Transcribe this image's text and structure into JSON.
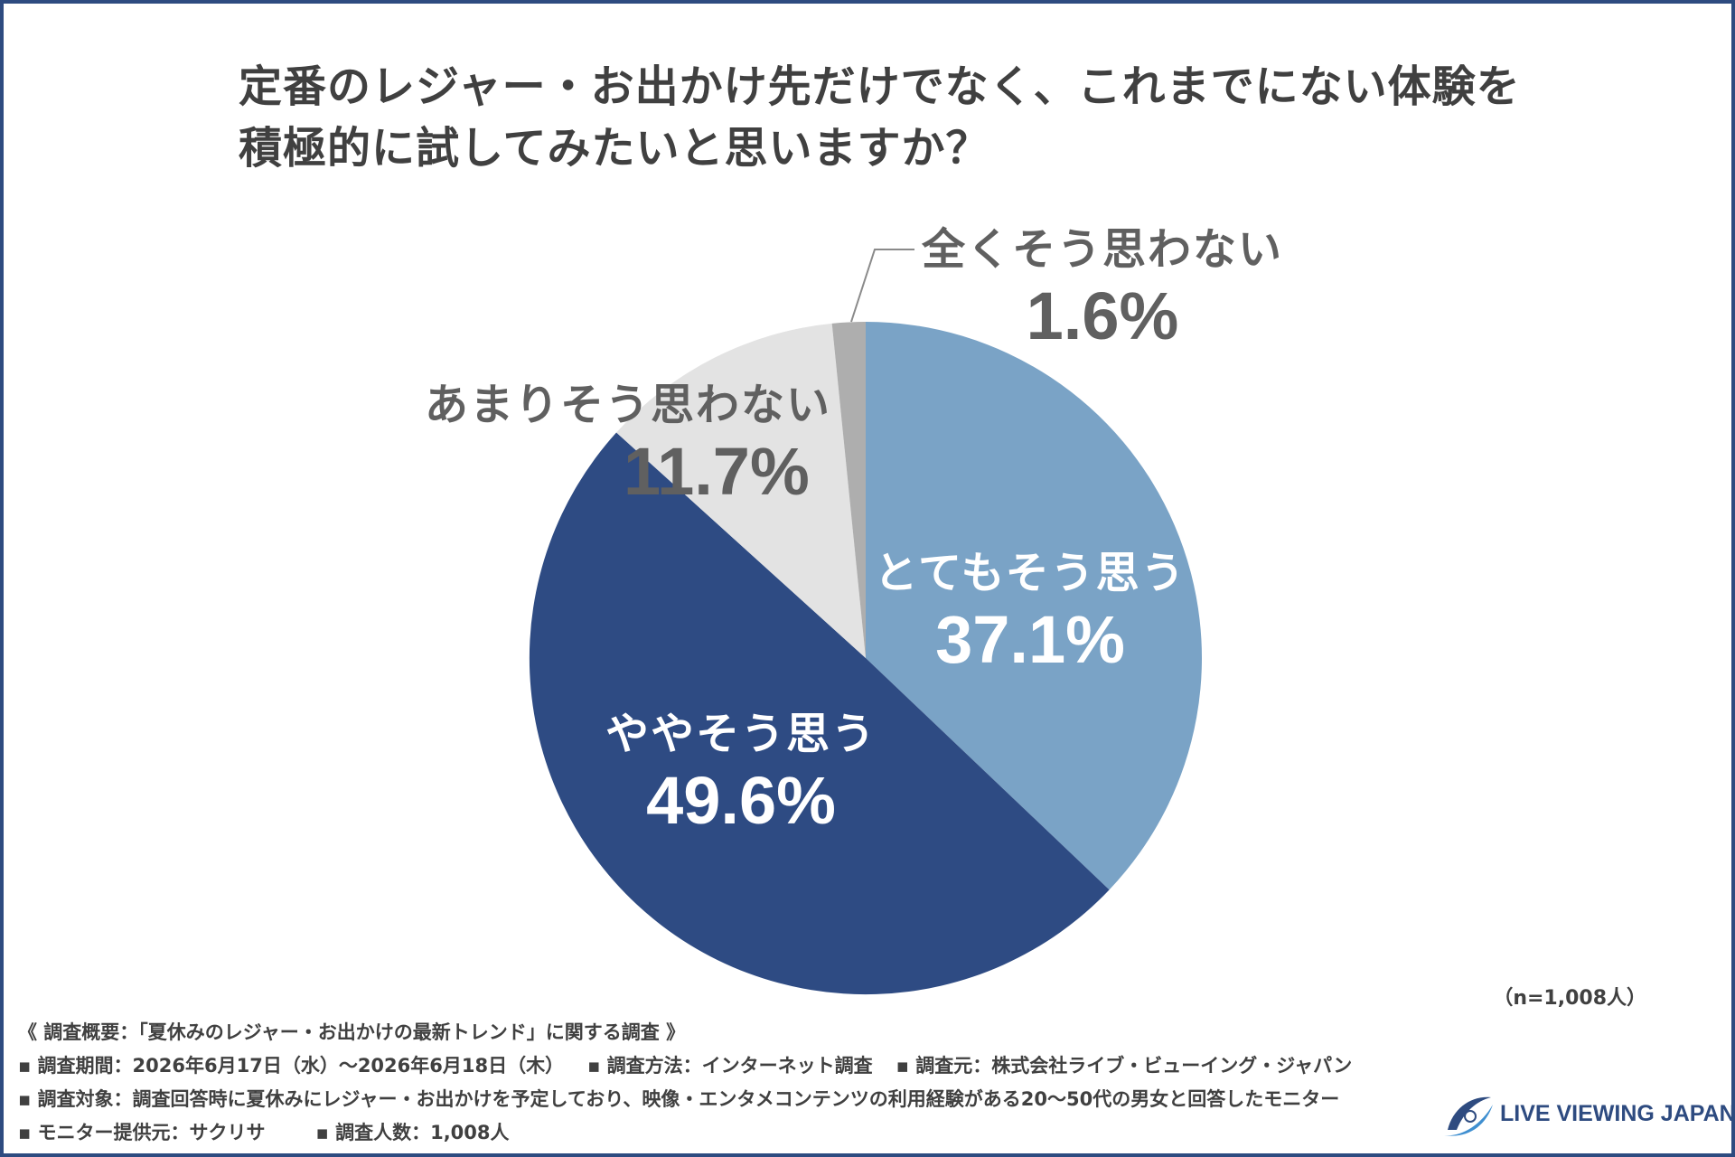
{
  "title_lines": [
    "定番のレジャー・お出かけ先だけでなく、これまでにない体験を",
    "積極的に試してみたいと思いますか？"
  ],
  "chart_data": {
    "type": "pie",
    "title": "定番のレジャー・お出かけ先だけでなく、これまでにない体験を積極的に試してみたいと思いますか？",
    "slices": [
      {
        "label": "とてもそう思う",
        "value": 37.1,
        "display": "37.1%",
        "color": "#7aa3c6"
      },
      {
        "label": "ややそう思う",
        "value": 49.6,
        "display": "49.6%",
        "color": "#2e4b83"
      },
      {
        "label": "あまりそう思わない",
        "value": 11.7,
        "display": "11.7%",
        "color": "#e3e3e3"
      },
      {
        "label": "全くそう思わない",
        "value": 1.6,
        "display": "1.6%",
        "color": "#aeaeae"
      }
    ],
    "start": "12 o'clock",
    "direction": "clockwise",
    "sample_size": "（n=1,008人）"
  },
  "notes": {
    "heading": "《 調査概要：「夏休みのレジャー・お出かけの最新トレンド」に関する調査 》",
    "period": "▪ 調査期間：2026年6月17日（水）～2026年6月18日（木）",
    "method": "▪ 調査方法：インターネット調査",
    "source": "▪ 調査元：株式会社ライブ・ビューイング・ジャパン",
    "target": "▪ 調査対象：調査回答時に夏休みにレジャー・お出かけを予定しており、映像・エンタメコンテンツの利用経験がある20～50代の男女と回答したモニター",
    "provider": "▪ モニター提供元：サクリサ",
    "count": "▪ 調査人数：1,008人"
  },
  "logo": {
    "text": "LIVE VIEWING JAPAN",
    "color": "#2e4b80"
  },
  "colors": {
    "border": "#2e4b80",
    "text": "#404040"
  }
}
